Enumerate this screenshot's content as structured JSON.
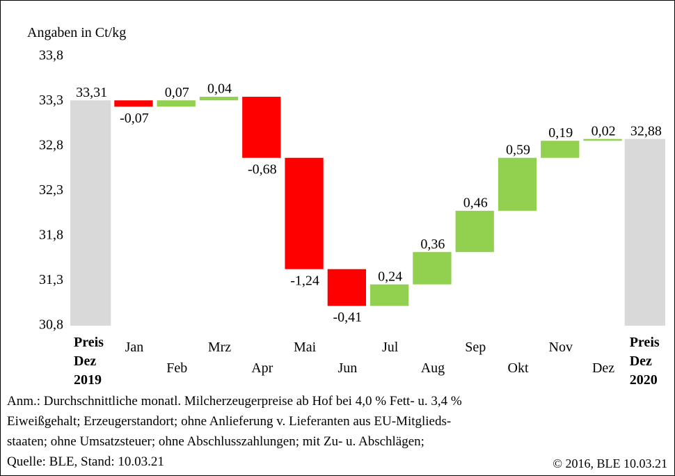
{
  "chart_data": {
    "type": "waterfall",
    "y_label": "Angaben in Ct/kg",
    "categories": [
      "Preis Dez 2019",
      "Jan",
      "Feb",
      "Mrz",
      "Apr",
      "Mai",
      "Jun",
      "Jul",
      "Aug",
      "Sep",
      "Okt",
      "Nov",
      "Dez",
      "Preis Dez 2020"
    ],
    "measure": [
      "total",
      "relative",
      "relative",
      "relative",
      "relative",
      "relative",
      "relative",
      "relative",
      "relative",
      "relative",
      "relative",
      "relative",
      "relative",
      "total"
    ],
    "values": [
      33.31,
      -0.07,
      0.07,
      0.04,
      -0.68,
      -1.24,
      -0.41,
      0.24,
      0.36,
      0.46,
      0.59,
      0.19,
      0.02,
      32.88
    ],
    "value_labels": [
      "33,31",
      "-0,07",
      "0,07",
      "0,04",
      "-0,68",
      "-1,24",
      "-0,41",
      "0,24",
      "0,36",
      "0,46",
      "0,59",
      "0,19",
      "0,02",
      "32,88"
    ],
    "colors": {
      "total": "#d9d9d9",
      "increase": "#92d050",
      "decrease": "#ff0000"
    },
    "ylim": [
      30.8,
      33.8
    ],
    "yticks": [
      {
        "value": 30.8,
        "label": "30,8"
      },
      {
        "value": 31.3,
        "label": "31,3"
      },
      {
        "value": 31.8,
        "label": "31,8"
      },
      {
        "value": 32.3,
        "label": "32,3"
      },
      {
        "value": 32.8,
        "label": "32,8"
      },
      {
        "value": 33.3,
        "label": "33,3"
      },
      {
        "value": 33.8,
        "label": "33,8"
      }
    ],
    "grid": false,
    "notes": [
      "Anm.: Durchschnittliche monatl. Milcherzeugerpreise ab Hof bei 4,0 % Fett- u. 3,4 %",
      "Eiweißgehalt; Erzeugerstandort; ohne Anlieferung v. Lieferanten aus EU-Mitglieds-",
      "staaten; ohne Umsatzsteuer; ohne Abschlusszahlungen; mit Zu- u. Abschlägen;",
      "Quelle:  BLE,  Stand: 10.03.21"
    ],
    "copyright": "© 2016, BLE 10.03.21"
  }
}
